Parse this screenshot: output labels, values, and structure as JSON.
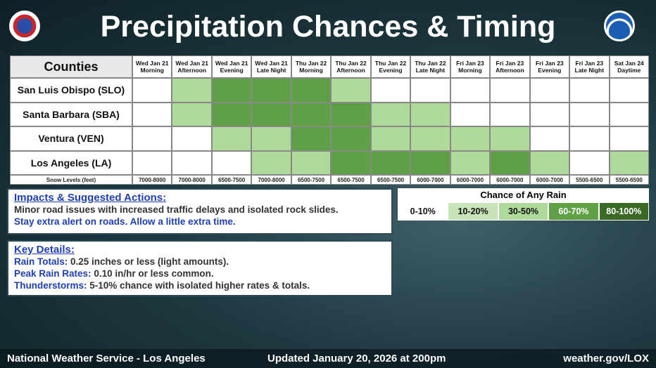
{
  "header": {
    "title": "Precipitation Chances & Timing"
  },
  "table": {
    "corner": "Counties",
    "columns": [
      {
        "day": "Wed Jan 21",
        "period": "Morning"
      },
      {
        "day": "Wed Jan 21",
        "period": "Afternoon"
      },
      {
        "day": "Wed Jan 21",
        "period": "Evening"
      },
      {
        "day": "Wed Jan 21",
        "period": "Late Night"
      },
      {
        "day": "Thu Jan 22",
        "period": "Morning"
      },
      {
        "day": "Thu Jan 22",
        "period": "Afternoon"
      },
      {
        "day": "Thu Jan 22",
        "period": "Evening"
      },
      {
        "day": "Thu Jan 22",
        "period": "Late Night"
      },
      {
        "day": "Fri Jan 23",
        "period": "Morning"
      },
      {
        "day": "Fri Jan 23",
        "period": "Afternoon"
      },
      {
        "day": "Fri Jan 23",
        "period": "Evening"
      },
      {
        "day": "Fri Jan 23",
        "period": "Late Night"
      },
      {
        "day": "Sat Jan 24",
        "period": "Daytime"
      }
    ],
    "rows": [
      {
        "name": "San Luis Obispo (SLO)",
        "levels": [
          "0-10%",
          "30-50%",
          "60-70%",
          "60-70%",
          "60-70%",
          "30-50%",
          "0-10%",
          "0-10%",
          "0-10%",
          "0-10%",
          "0-10%",
          "0-10%",
          "0-10%"
        ]
      },
      {
        "name": "Santa Barbara (SBA)",
        "levels": [
          "0-10%",
          "30-50%",
          "60-70%",
          "60-70%",
          "60-70%",
          "60-70%",
          "30-50%",
          "30-50%",
          "0-10%",
          "0-10%",
          "0-10%",
          "0-10%",
          "0-10%"
        ]
      },
      {
        "name": "Ventura (VEN)",
        "levels": [
          "0-10%",
          "0-10%",
          "30-50%",
          "30-50%",
          "60-70%",
          "60-70%",
          "30-50%",
          "30-50%",
          "30-50%",
          "30-50%",
          "0-10%",
          "0-10%",
          "0-10%"
        ]
      },
      {
        "name": "Los Angeles (LA)",
        "levels": [
          "0-10%",
          "0-10%",
          "0-10%",
          "30-50%",
          "30-50%",
          "60-70%",
          "60-70%",
          "60-70%",
          "30-50%",
          "60-70%",
          "30-50%",
          "0-10%",
          "30-50%"
        ]
      }
    ],
    "snow": {
      "label": "Snow Levels (feet)",
      "values": [
        "7000-8000",
        "7000-8000",
        "6500-7500",
        "7000-8000",
        "6500-7500",
        "6500-7500",
        "6500-7500",
        "6000-7000",
        "6000-7000",
        "6000-7000",
        "6000-7000",
        "5500-6500",
        "5500-6500"
      ]
    }
  },
  "impacts": {
    "heading": "Impacts & Suggested Actions:",
    "line1": "Minor road issues with increased traffic delays and isolated rock slides.",
    "line2": "Stay extra alert on roads. Allow a little extra time."
  },
  "key_details": {
    "heading": "Key Details:",
    "items": [
      {
        "label": "Rain Totals:",
        "text": "0.25 inches or less (light amounts)."
      },
      {
        "label": "Peak Rain Rates:",
        "text": "0.10 in/hr or less common."
      },
      {
        "label": "Thunderstorms:",
        "text": "5-10% chance with isolated higher rates & totals."
      }
    ]
  },
  "legend": {
    "title": "Chance of Any Rain",
    "entries": [
      {
        "label": "0-10%",
        "color": "#ffffff"
      },
      {
        "label": "10-20%",
        "color": "#c9e3b8"
      },
      {
        "label": "30-50%",
        "color": "#b0d99c"
      },
      {
        "label": "60-70%",
        "color": "#5f9f45"
      },
      {
        "label": "80-100%",
        "color": "#3b6a27"
      }
    ]
  },
  "footer": {
    "left": "National Weather Service - Los Angeles",
    "center": "Updated January 20, 2026 at 200pm",
    "right": "weather.gov/LOX"
  }
}
